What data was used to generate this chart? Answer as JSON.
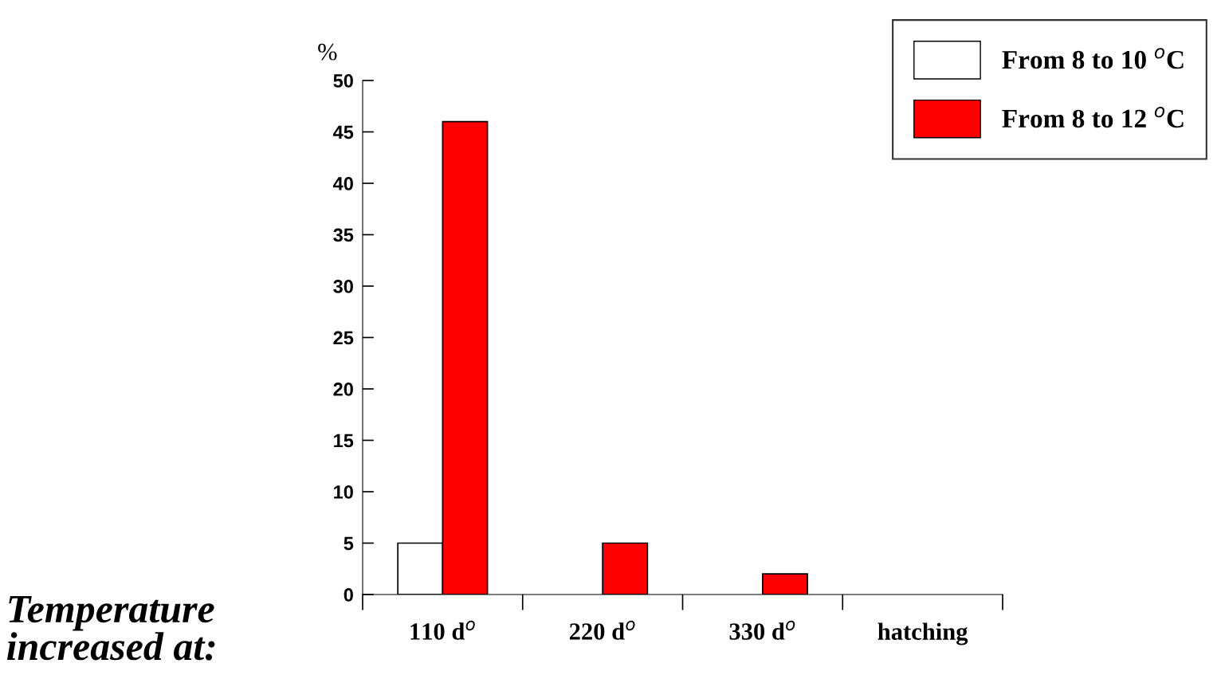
{
  "chart_data": {
    "type": "bar",
    "ylabel": "%",
    "categories": [
      "110 d$^{o}$",
      "220 d$^{o}$",
      "330 d$^{o}$",
      "hatching"
    ],
    "series": [
      {
        "name": "From 8 to 10 $^{o}$C",
        "color": "#ffffff",
        "values": [
          5,
          0,
          0,
          0
        ]
      },
      {
        "name": "From 8 to 12 $^{o}$C",
        "color": "#ff0000",
        "values": [
          46,
          5,
          2,
          0
        ]
      }
    ],
    "ylim": [
      0,
      50
    ],
    "yticks": [
      0,
      5,
      10,
      15,
      20,
      25,
      30,
      35,
      40,
      45,
      50
    ],
    "grid": false,
    "legend": "top right",
    "annotations": [
      "Temperature increased at:"
    ]
  }
}
